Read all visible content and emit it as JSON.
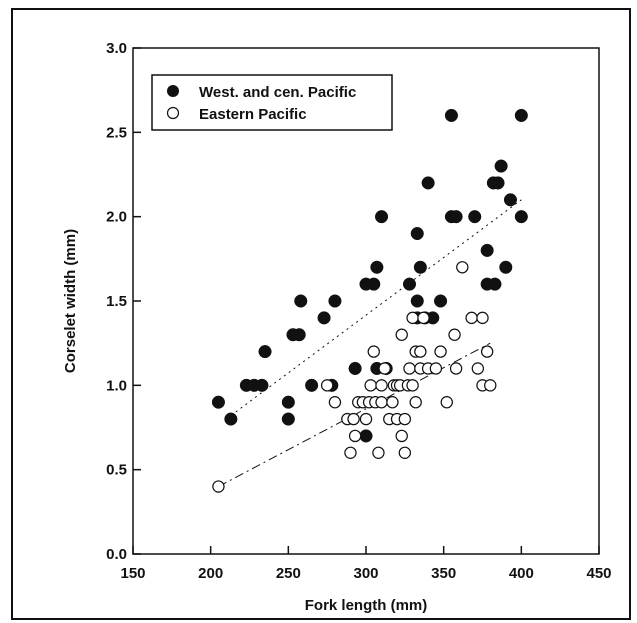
{
  "chart_data": {
    "type": "scatter",
    "title": "",
    "xlabel": "Fork length (mm)",
    "ylabel": "Corselet width (mm)",
    "xlim": [
      150,
      450
    ],
    "ylim": [
      0.0,
      3.0
    ],
    "xticks": [
      "150",
      "200",
      "250",
      "300",
      "350",
      "400",
      "450"
    ],
    "yticks": [
      "0.0",
      "0.5",
      "1.0",
      "1.5",
      "2.0",
      "2.5",
      "3.0"
    ],
    "grid": false,
    "legend_position": "top-left",
    "series": [
      {
        "name": "West. and cen. Pacific",
        "marker": "filled-circle",
        "color": "#111111",
        "points": [
          [
            205,
            0.9
          ],
          [
            213,
            0.8
          ],
          [
            223,
            1.0
          ],
          [
            228,
            1.0
          ],
          [
            233,
            1.0
          ],
          [
            235,
            1.2
          ],
          [
            250,
            0.9
          ],
          [
            250,
            0.8
          ],
          [
            253,
            1.3
          ],
          [
            257,
            1.3
          ],
          [
            258,
            1.5
          ],
          [
            265,
            1.0
          ],
          [
            273,
            1.4
          ],
          [
            278,
            1.0
          ],
          [
            280,
            1.5
          ],
          [
            293,
            1.1
          ],
          [
            300,
            0.7
          ],
          [
            300,
            1.6
          ],
          [
            305,
            1.6
          ],
          [
            307,
            1.1
          ],
          [
            307,
            1.7
          ],
          [
            310,
            2.0
          ],
          [
            313,
            1.1
          ],
          [
            328,
            1.6
          ],
          [
            333,
            1.4
          ],
          [
            333,
            1.9
          ],
          [
            333,
            1.5
          ],
          [
            335,
            1.7
          ],
          [
            338,
            1.4
          ],
          [
            340,
            2.2
          ],
          [
            343,
            1.4
          ],
          [
            348,
            1.5
          ],
          [
            355,
            2.6
          ],
          [
            355,
            2.0
          ],
          [
            358,
            2.0
          ],
          [
            370,
            2.0
          ],
          [
            378,
            1.8
          ],
          [
            378,
            1.6
          ],
          [
            382,
            2.2
          ],
          [
            383,
            1.6
          ],
          [
            385,
            2.2
          ],
          [
            387,
            2.3
          ],
          [
            390,
            1.7
          ],
          [
            393,
            2.1
          ],
          [
            400,
            2.0
          ],
          [
            400,
            2.6
          ]
        ],
        "trendline": [
          [
            210,
            0.8
          ],
          [
            400,
            2.1
          ]
        ]
      },
      {
        "name": "Eastern Pacific",
        "marker": "open-circle",
        "color": "#111111",
        "points": [
          [
            205,
            0.4
          ],
          [
            275,
            1.0
          ],
          [
            280,
            0.9
          ],
          [
            288,
            0.8
          ],
          [
            290,
            0.6
          ],
          [
            292,
            0.8
          ],
          [
            293,
            0.7
          ],
          [
            295,
            0.9
          ],
          [
            298,
            0.9
          ],
          [
            300,
            0.8
          ],
          [
            302,
            0.9
          ],
          [
            303,
            1.0
          ],
          [
            305,
            1.2
          ],
          [
            306,
            0.9
          ],
          [
            308,
            0.6
          ],
          [
            310,
            0.9
          ],
          [
            310,
            1.0
          ],
          [
            312,
            1.1
          ],
          [
            315,
            0.8
          ],
          [
            317,
            0.9
          ],
          [
            318,
            1.0
          ],
          [
            320,
            0.8
          ],
          [
            320,
            1.0
          ],
          [
            322,
            1.0
          ],
          [
            323,
            0.7
          ],
          [
            323,
            1.3
          ],
          [
            325,
            0.6
          ],
          [
            325,
            0.8
          ],
          [
            327,
            1.0
          ],
          [
            328,
            1.1
          ],
          [
            330,
            1.0
          ],
          [
            330,
            1.4
          ],
          [
            332,
            1.2
          ],
          [
            332,
            0.9
          ],
          [
            335,
            1.2
          ],
          [
            335,
            1.1
          ],
          [
            337,
            1.4
          ],
          [
            340,
            1.1
          ],
          [
            345,
            1.1
          ],
          [
            348,
            1.2
          ],
          [
            352,
            0.9
          ],
          [
            357,
            1.3
          ],
          [
            358,
            1.1
          ],
          [
            362,
            1.7
          ],
          [
            368,
            1.4
          ],
          [
            372,
            1.1
          ],
          [
            375,
            1.4
          ],
          [
            375,
            1.0
          ],
          [
            378,
            1.2
          ],
          [
            380,
            1.0
          ]
        ],
        "trendline": [
          [
            205,
            0.4
          ],
          [
            380,
            1.25
          ]
        ]
      }
    ]
  }
}
